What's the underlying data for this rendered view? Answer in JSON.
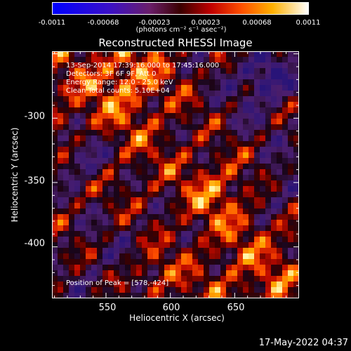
{
  "colorbar": {
    "ticks": [
      "-0.0011",
      "-0.00068",
      "-0.00023",
      "0.00023",
      "0.00068",
      "0.0011"
    ],
    "units": "(photons cm⁻² s⁻¹ asec⁻²)"
  },
  "chart_data": {
    "type": "heatmap",
    "title": "Reconstructed RHESSI Image",
    "xlabel": "Heliocentric X (arcsec)",
    "ylabel": "Heliocentric Y (arcsec)",
    "x_ticks": [
      "550",
      "600",
      "650"
    ],
    "y_ticks": [
      "-300",
      "-350",
      "-400"
    ],
    "xlim": [
      508,
      700
    ],
    "ylim": [
      -440,
      -248
    ],
    "peak": [
      578,
      -424
    ]
  },
  "info": {
    "line1": "13-Sep-2014 17:39:16.000 to 17:45:16.000",
    "line2": "Detectors: 3F 6F 9F, Att 0",
    "line3": "Energy Range: 12.0 - 25.0 keV",
    "line4": "Clean     Total counts: 5.10E+04",
    "peak_label": "Position of Peak = [578,-424]"
  },
  "timestamp": "17-May-2022 04:37"
}
